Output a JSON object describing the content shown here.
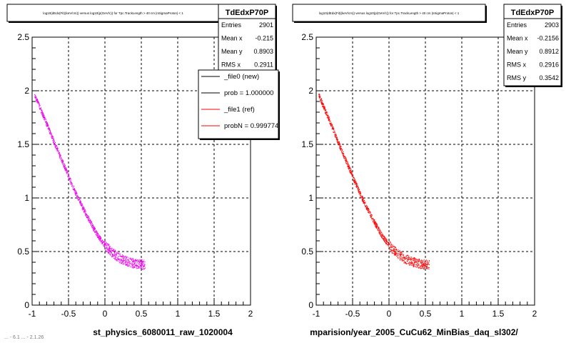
{
  "chart_data": [
    {
      "type": "scatter",
      "title": "log10(dEdx(Fit)(keV/cm)) versus log10(p(GeV/c)) for Tpc.TrackLength > 40 cm |nSigmaProton| < 1",
      "xlabel": "st_physics_6080011_raw_1020004",
      "ylabel": "",
      "xlim": [
        -1,
        2
      ],
      "ylim": [
        0,
        2.5
      ],
      "xticks": [
        "-1",
        "-0.5",
        "0",
        "0.5",
        "1",
        "1.5",
        "2"
      ],
      "yticks": [
        "0",
        "0.5",
        "1",
        "1.5",
        "2",
        "2.5"
      ],
      "grid": true,
      "color": "#ee00ee",
      "band": [
        {
          "x": -0.97,
          "y": 1.97
        },
        {
          "x": -0.9,
          "y": 1.85
        },
        {
          "x": -0.8,
          "y": 1.69
        },
        {
          "x": -0.7,
          "y": 1.52
        },
        {
          "x": -0.6,
          "y": 1.36
        },
        {
          "x": -0.5,
          "y": 1.2
        },
        {
          "x": -0.4,
          "y": 1.04
        },
        {
          "x": -0.3,
          "y": 0.9
        },
        {
          "x": -0.2,
          "y": 0.77
        },
        {
          "x": -0.1,
          "y": 0.65
        },
        {
          "x": 0.0,
          "y": 0.56
        },
        {
          "x": 0.1,
          "y": 0.49
        },
        {
          "x": 0.2,
          "y": 0.44
        },
        {
          "x": 0.3,
          "y": 0.41
        },
        {
          "x": 0.4,
          "y": 0.39
        },
        {
          "x": 0.55,
          "y": 0.38
        }
      ],
      "stats": {
        "name": "TdEdxP70P",
        "rows": [
          {
            "label": "Entries",
            "value": "2901"
          },
          {
            "label": "Mean x",
            "value": "-0.215"
          },
          {
            "label": "Mean y",
            "value": "0.8903"
          },
          {
            "label": "RMS x",
            "value": "0.2911"
          }
        ]
      },
      "legend": {
        "position": "top-right",
        "entries": [
          {
            "label": "_file0 (new)",
            "color": "#000000"
          },
          {
            "label": "prob = 1.000000",
            "color": "#000000"
          },
          {
            "label": "_file1 (ref)",
            "color": "#ff0000"
          },
          {
            "label": "probN = 0.999774",
            "color": "#ff0000"
          }
        ]
      }
    },
    {
      "type": "scatter",
      "title": "log10(dEdx(Fit)(keV/cm)) versus log10(p(GeV/c)) for Tpc.TrackLength > 40 cm |nSigmaProton| < 1",
      "xlabel": "mparision/year_2005_CuCu62_MinBias_daq_sl302/",
      "ylabel": "",
      "xlim": [
        -1,
        2
      ],
      "ylim": [
        0,
        2.5
      ],
      "xticks": [
        "-1",
        "-0.5",
        "0",
        "0.5",
        "1",
        "1.5",
        "2"
      ],
      "yticks": [
        "0",
        "0.5",
        "1",
        "1.5",
        "2",
        "2.5"
      ],
      "grid": true,
      "color": "#ff0000",
      "band": [
        {
          "x": -0.97,
          "y": 1.97
        },
        {
          "x": -0.9,
          "y": 1.85
        },
        {
          "x": -0.8,
          "y": 1.69
        },
        {
          "x": -0.7,
          "y": 1.52
        },
        {
          "x": -0.6,
          "y": 1.36
        },
        {
          "x": -0.5,
          "y": 1.2
        },
        {
          "x": -0.4,
          "y": 1.04
        },
        {
          "x": -0.3,
          "y": 0.9
        },
        {
          "x": -0.2,
          "y": 0.77
        },
        {
          "x": -0.1,
          "y": 0.65
        },
        {
          "x": 0.0,
          "y": 0.56
        },
        {
          "x": 0.1,
          "y": 0.49
        },
        {
          "x": 0.2,
          "y": 0.44
        },
        {
          "x": 0.3,
          "y": 0.41
        },
        {
          "x": 0.4,
          "y": 0.39
        },
        {
          "x": 0.55,
          "y": 0.38
        }
      ],
      "stats": {
        "name": "TdEdxP70P",
        "rows": [
          {
            "label": "Entries",
            "value": "2903"
          },
          {
            "label": "Mean x",
            "value": "-0.2156"
          },
          {
            "label": "Mean y",
            "value": "0.8912"
          },
          {
            "label": "RMS x",
            "value": "0.2916"
          },
          {
            "label": "RMS y",
            "value": "0.3542"
          }
        ]
      }
    }
  ],
  "footer_text": "... - 6.1 ... - 2.1.26"
}
